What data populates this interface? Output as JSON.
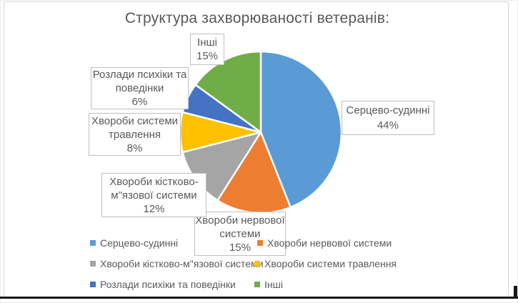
{
  "chart_data": {
    "type": "pie",
    "title": "Структура захворюваності ветеранів:",
    "categories": [
      "Серцево-судинні",
      "Хвороби нервової системи",
      "Хвороби кістково-м\"язової системи",
      "Хвороби системи травлення",
      "Розлади психіки та поведінки",
      "Інші"
    ],
    "values": [
      44,
      15,
      12,
      8,
      6,
      15
    ],
    "unit": "%",
    "colors": [
      "#5B9BD5",
      "#ED7D31",
      "#A5A5A5",
      "#FFC000",
      "#4472C4",
      "#70AD47"
    ],
    "start_angle_deg": 0,
    "direction": "clockwise",
    "slice_border_color": "#FFFFFF",
    "legend_position": "bottom",
    "data_labels": "category name + percent, outside in boxed callouts"
  },
  "data_labels": [
    {
      "id": "sercevo",
      "text": "Серцево-судинні\n44%"
    },
    {
      "id": "nervova",
      "text": "Хвороби нервової\nсистеми\n15%"
    },
    {
      "id": "kistkovo",
      "text": "Хвороби кістково-\nм\"язової системи\n12%"
    },
    {
      "id": "travlennia",
      "text": "Хвороби системи\nтравлення\n8%"
    },
    {
      "id": "rozlady",
      "text": "Розлади психіки та\nповедінки\n6%"
    },
    {
      "id": "inshi",
      "text": "Інші\n15%"
    }
  ],
  "legend": {
    "items": [
      {
        "label": "Серцево-судинні"
      },
      {
        "label": "Хвороби нервової системи"
      },
      {
        "label": "Хвороби кістково-м\"язової системи"
      },
      {
        "label": "Хвороби системи травлення"
      },
      {
        "label": "Розлади психіки та поведінки"
      },
      {
        "label": "Інші"
      }
    ]
  },
  "text_color": "#595959",
  "box_border_color": "#BFBFBF"
}
